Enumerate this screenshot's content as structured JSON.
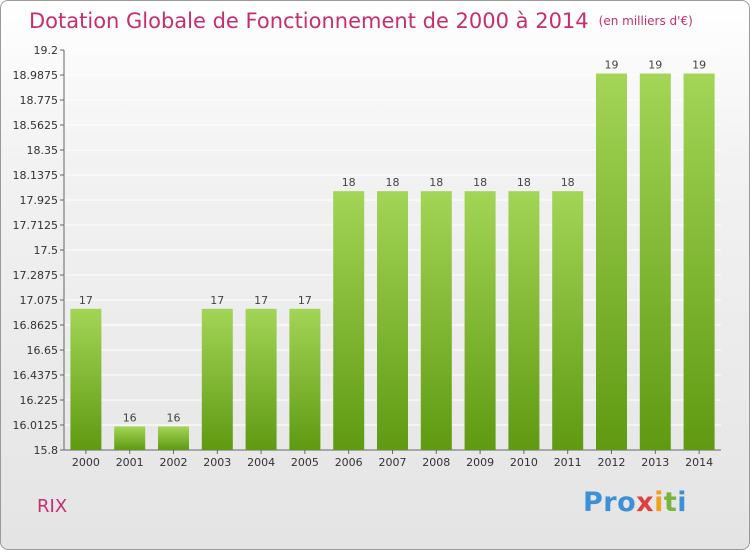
{
  "header": {
    "title": "Dotation Globale de Fonctionnement de 2000 à 2014",
    "unit": "(en milliers d'€)"
  },
  "footer": {
    "commune": "RIX",
    "logo": [
      "Pro",
      "x",
      "i",
      "t",
      "i"
    ]
  },
  "colors": {
    "title": "#c72e6f",
    "bar_light": "#9fd14e",
    "bar_dark": "#5f9a12",
    "grid": "#ffffff"
  },
  "chart_data": {
    "type": "bar",
    "categories": [
      "2000",
      "2001",
      "2002",
      "2003",
      "2004",
      "2005",
      "2006",
      "2007",
      "2008",
      "2009",
      "2010",
      "2011",
      "2012",
      "2013",
      "2014"
    ],
    "values": [
      17,
      16,
      16,
      17,
      17,
      17,
      18,
      18,
      18,
      18,
      18,
      18,
      19,
      19,
      19
    ],
    "bar_heights": [
      17.0,
      16.0,
      16.0,
      17.0,
      17.0,
      17.0,
      18.0,
      18.0,
      18.0,
      18.0,
      18.0,
      18.0,
      19.0,
      19.0,
      19.0
    ],
    "title": "Dotation Globale de Fonctionnement de 2000 à 2014",
    "xlabel": "",
    "ylabel": "",
    "ylim": [
      15.8,
      19.2
    ],
    "yticks": [
      "15.8",
      "16.0125",
      "16.225",
      "16.4375",
      "16.65",
      "16.8625",
      "17.075",
      "17.2875",
      "17.5",
      "17.7125",
      "17.925",
      "18.1375",
      "18.35",
      "18.5625",
      "18.775",
      "18.9875",
      "19.2"
    ],
    "grid": true
  }
}
